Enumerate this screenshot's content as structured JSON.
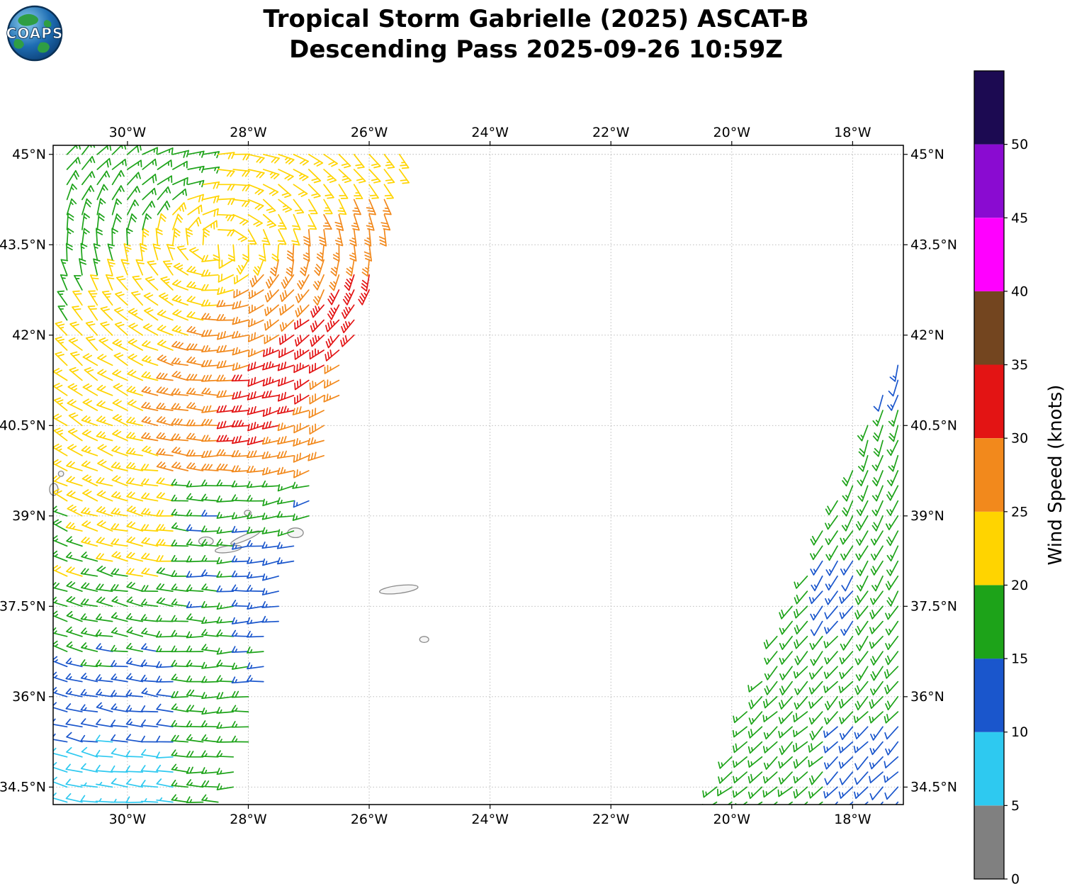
{
  "title": {
    "line1": "Tropical Storm Gabrielle (2025) ASCAT-B",
    "line2": "Descending Pass 2025-09-26 10:59Z"
  },
  "logo": {
    "text": "COAPS"
  },
  "axes": {
    "lon_range": [
      -31.23,
      -17.16
    ],
    "lat_range": [
      34.21,
      45.15
    ],
    "lon_ticks": [
      {
        "value": -30,
        "label": "30°W"
      },
      {
        "value": -28,
        "label": "28°W"
      },
      {
        "value": -26,
        "label": "26°W"
      },
      {
        "value": -24,
        "label": "24°W"
      },
      {
        "value": -22,
        "label": "22°W"
      },
      {
        "value": -20,
        "label": "20°W"
      },
      {
        "value": -18,
        "label": "18°W"
      }
    ],
    "lat_ticks": [
      {
        "value": 45,
        "label": "45°N"
      },
      {
        "value": 43.5,
        "label": "43.5°N"
      },
      {
        "value": 42,
        "label": "42°N"
      },
      {
        "value": 40.5,
        "label": "40.5°N"
      },
      {
        "value": 39,
        "label": "39°N"
      },
      {
        "value": 37.5,
        "label": "37.5°N"
      },
      {
        "value": 36,
        "label": "36°N"
      },
      {
        "value": 34.5,
        "label": "34.5°N"
      }
    ]
  },
  "colorbar": {
    "label": "Wind Speed (knots)",
    "tick_values": [
      0,
      5,
      10,
      15,
      20,
      25,
      30,
      35,
      40,
      45,
      50
    ],
    "value_max": 55,
    "segments": [
      {
        "from": 0,
        "to": 5,
        "color": "#808080"
      },
      {
        "from": 5,
        "to": 10,
        "color": "#2ec9f0"
      },
      {
        "from": 10,
        "to": 15,
        "color": "#1a56cc"
      },
      {
        "from": 15,
        "to": 20,
        "color": "#1da319"
      },
      {
        "from": 20,
        "to": 25,
        "color": "#ffd400"
      },
      {
        "from": 25,
        "to": 30,
        "color": "#f2891c"
      },
      {
        "from": 30,
        "to": 35,
        "color": "#e31414"
      },
      {
        "from": 35,
        "to": 40,
        "color": "#73451f"
      },
      {
        "from": 40,
        "to": 45,
        "color": "#ff00ff"
      },
      {
        "from": 45,
        "to": 50,
        "color": "#8a0bd1"
      },
      {
        "from": 50,
        "to": 55,
        "color": "#1c0a52"
      }
    ]
  },
  "chart_data": {
    "type": "wind_barb_map",
    "units": "knots",
    "grid_resolution_deg": 0.25,
    "observed_speed_range_knots": [
      6,
      34
    ],
    "vortex_center": {
      "lon": -28.5,
      "lat": 43.5
    },
    "swaths": [
      {
        "name": "west_swath",
        "lat_min": 34.25,
        "lat_max": 45.1,
        "lon_min": -31.25,
        "lon_max_edge": {
          "a": -37.4,
          "b": 0.2667
        },
        "speed_model": {
          "type": "core_bands",
          "core_p0": {
            "lon": -28.0,
            "lat": 40.6
          },
          "core_p1": {
            "lon": -26.0,
            "lat": 42.7
          },
          "bands": [
            {
              "dist": 0.45,
              "knots": 32
            },
            {
              "dist": 1.6,
              "knots": 27
            },
            {
              "dist": 3.4,
              "knots": 22
            },
            {
              "dist": 99,
              "knots": 17
            }
          ],
          "overrides": [
            {
              "lat_min": 36.2,
              "lat_max": 39.6,
              "lon_min": -29.2,
              "lon_max": -17.0,
              "knots": 16
            },
            {
              "lat_min": 36.2,
              "lat_max": 38.6,
              "lon_min": -28.0,
              "lon_max": -17.0,
              "knots": 14
            },
            {
              "lat_min": -90,
              "lat_max": 38.2,
              "lon_min": -99.0,
              "lon_max": -29.2,
              "knots": 20,
              "decay_per_deg": 3.2
            }
          ]
        }
      },
      {
        "name": "east_swath",
        "lat_min": 34.25,
        "lat_max": 41.55,
        "lon_min_edge": {
          "a": -34.8,
          "b": 0.42
        },
        "lon_max": -17.12,
        "speed_model": {
          "type": "uniform",
          "knots": 17,
          "overrides": [
            {
              "lat_min": 40.8,
              "lat_max": 41.6,
              "lon_min": -99.0,
              "lon_max": 0.0,
              "knots": 12
            },
            {
              "lat_min": 37.1,
              "lat_max": 38.4,
              "lon_min": -18.7,
              "lon_max": -17.8,
              "knots": 13
            },
            {
              "lat_min": 34.2,
              "lat_max": 35.5,
              "lon_min": -18.4,
              "lon_max": -17.0,
              "knots": 13
            }
          ]
        }
      }
    ],
    "islands": [
      {
        "name": "Corvo",
        "lon": -31.1,
        "lat": 39.7,
        "w_deg": 0.09,
        "h_deg": 0.09,
        "rot": 0
      },
      {
        "name": "Flores",
        "lon": -31.22,
        "lat": 39.44,
        "w_deg": 0.14,
        "h_deg": 0.2,
        "rot": 0
      },
      {
        "name": "Faial",
        "lon": -28.7,
        "lat": 38.58,
        "w_deg": 0.24,
        "h_deg": 0.14,
        "rot": 0
      },
      {
        "name": "Pico",
        "lon": -28.33,
        "lat": 38.45,
        "w_deg": 0.44,
        "h_deg": 0.11,
        "rot": -8
      },
      {
        "name": "Sao Jorge",
        "lon": -28.05,
        "lat": 38.64,
        "w_deg": 0.52,
        "h_deg": 0.09,
        "rot": -23
      },
      {
        "name": "Graciosa",
        "lon": -28.01,
        "lat": 39.05,
        "w_deg": 0.11,
        "h_deg": 0.09,
        "rot": 0
      },
      {
        "name": "Terceira",
        "lon": -27.22,
        "lat": 38.72,
        "w_deg": 0.26,
        "h_deg": 0.16,
        "rot": 0
      },
      {
        "name": "Sao Miguel",
        "lon": -25.51,
        "lat": 37.78,
        "w_deg": 0.64,
        "h_deg": 0.13,
        "rot": -7
      },
      {
        "name": "Santa Maria",
        "lon": -25.09,
        "lat": 36.95,
        "w_deg": 0.15,
        "h_deg": 0.1,
        "rot": 0
      }
    ]
  }
}
